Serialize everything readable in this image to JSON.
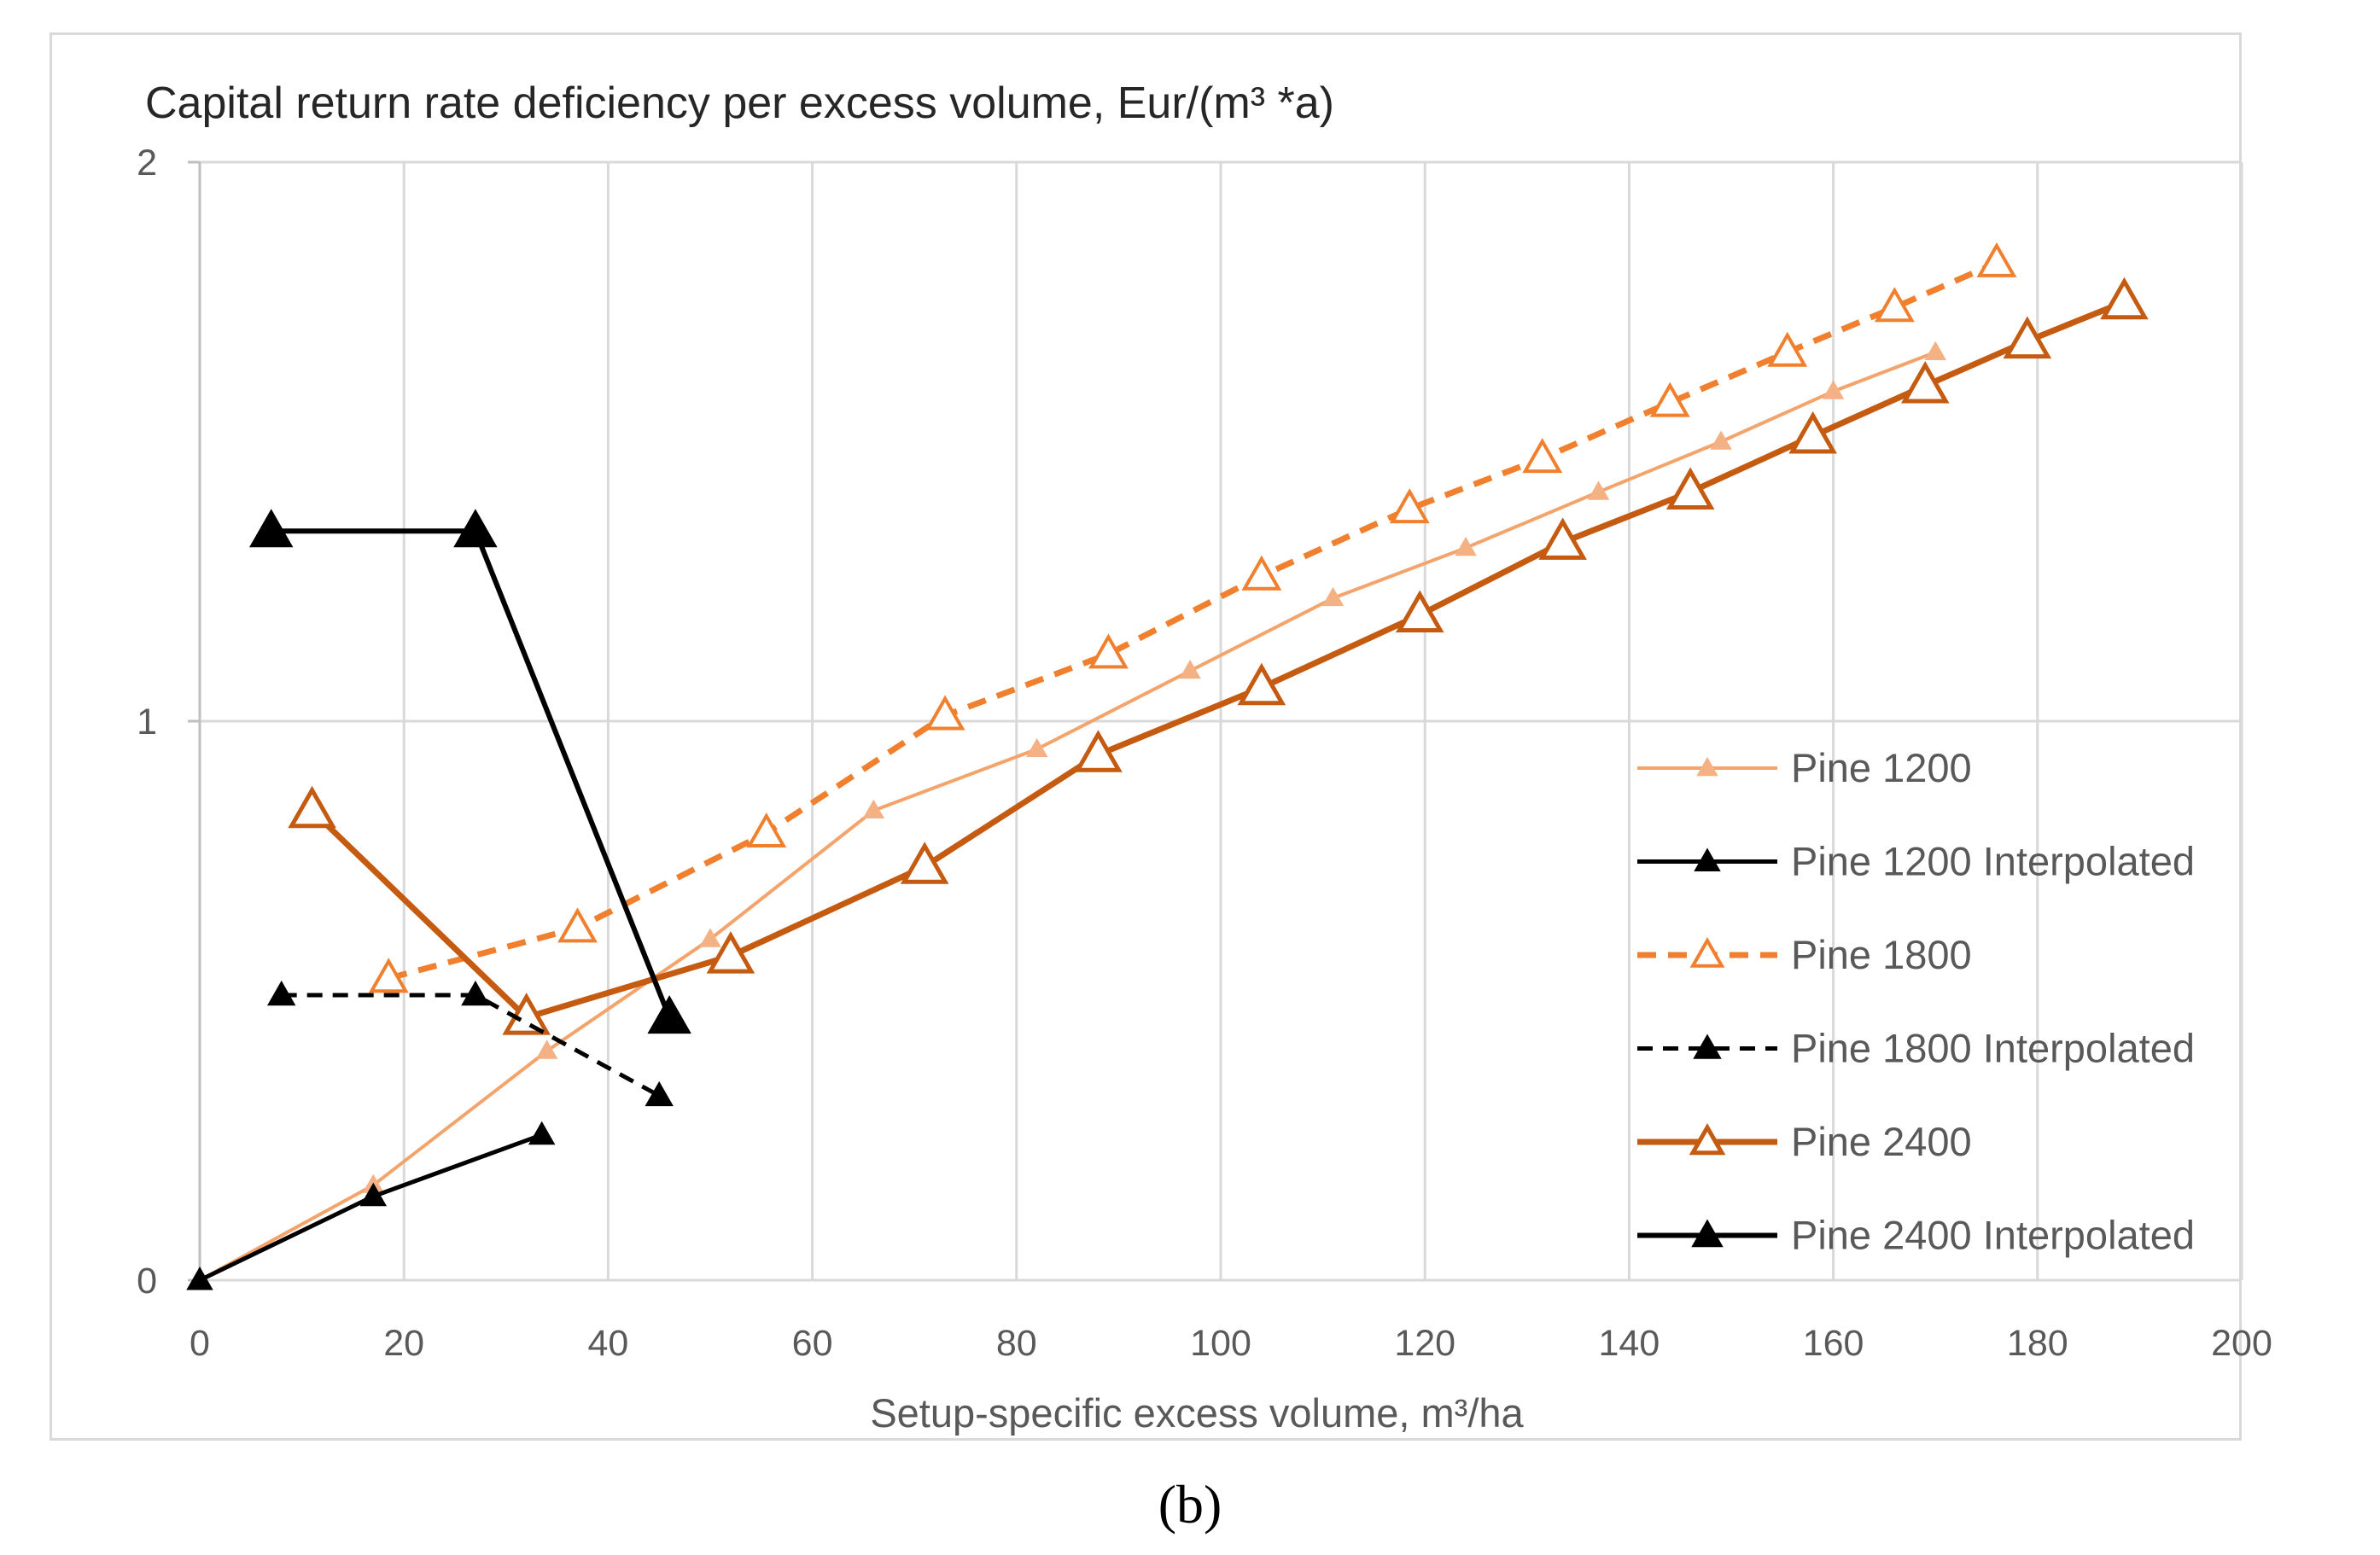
{
  "chart_data": {
    "type": "line",
    "title": "Capital return rate deficiency per excess volume,  Eur/(m³ *a)",
    "xlabel": "Setup-specific excess volume, m³/ha",
    "ylabel": "",
    "xlim": [
      0,
      200
    ],
    "ylim": [
      0,
      2
    ],
    "xticks": [
      "0",
      "20",
      "40",
      "60",
      "80",
      "100",
      "120",
      "140",
      "160",
      "180",
      "200"
    ],
    "yticks": [
      "0",
      "1",
      "2"
    ],
    "grid": true,
    "legend_position": "bottom-right",
    "caption": "(b)",
    "series": [
      {
        "name": "Pine 1200",
        "color": "#f4a46a",
        "dash": "solid",
        "marker": "small-filled-triangle",
        "points": [
          [
            0,
            0
          ],
          [
            17,
            0.17
          ],
          [
            34,
            0.41
          ],
          [
            50,
            0.61
          ],
          [
            66,
            0.84
          ],
          [
            82,
            0.95
          ],
          [
            97,
            1.09
          ],
          [
            111,
            1.22
          ],
          [
            124,
            1.31
          ],
          [
            137,
            1.41
          ],
          [
            149,
            1.5
          ],
          [
            160,
            1.59
          ],
          [
            170,
            1.66
          ]
        ]
      },
      {
        "name": "Pine 1200 Interpolated",
        "color": "#000000",
        "dash": "solid",
        "marker": "small-black-triangle",
        "points": [
          [
            0,
            0
          ],
          [
            17,
            0.15
          ],
          [
            33.5,
            0.26
          ]
        ]
      },
      {
        "name": "Pine 1800",
        "color": "#f07f2e",
        "dash": "dashed",
        "marker": "open-triangle",
        "points": [
          [
            18.5,
            0.54
          ],
          [
            37,
            0.63
          ],
          [
            55.5,
            0.8
          ],
          [
            73,
            1.01
          ],
          [
            89,
            1.12
          ],
          [
            104,
            1.26
          ],
          [
            118.5,
            1.38
          ],
          [
            131.5,
            1.47
          ],
          [
            144,
            1.57
          ],
          [
            155.5,
            1.66
          ],
          [
            166,
            1.74
          ],
          [
            176,
            1.82
          ]
        ]
      },
      {
        "name": "Pine 1800 Interpolated",
        "color": "#000000",
        "dash": "dashed",
        "marker": "small-black-triangle",
        "points": [
          [
            8,
            0.51
          ],
          [
            27,
            0.51
          ],
          [
            45,
            0.33
          ]
        ]
      },
      {
        "name": "Pine 2400",
        "color": "#c55a11",
        "dash": "solid",
        "marker": "large-open-triangle",
        "points": [
          [
            11,
            0.84
          ],
          [
            32,
            0.47
          ],
          [
            52,
            0.58
          ],
          [
            71,
            0.74
          ],
          [
            88,
            0.94
          ],
          [
            104,
            1.06
          ],
          [
            119.5,
            1.19
          ],
          [
            133.5,
            1.32
          ],
          [
            146,
            1.41
          ],
          [
            158,
            1.51
          ],
          [
            169,
            1.6
          ],
          [
            179,
            1.68
          ],
          [
            188.5,
            1.75
          ]
        ]
      },
      {
        "name": "Pine 2400 Interpolated",
        "color": "#000000",
        "dash": "solid",
        "marker": "large-black-triangle",
        "points": [
          [
            7,
            1.34
          ],
          [
            27,
            1.34
          ],
          [
            46,
            0.47
          ]
        ]
      }
    ]
  }
}
